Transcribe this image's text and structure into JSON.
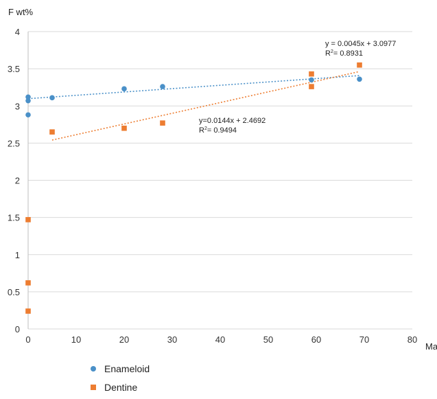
{
  "chart_data": {
    "type": "scatter",
    "title": "",
    "xlabel": "Ma",
    "ylabel": "F wt%",
    "xlim": [
      0,
      80
    ],
    "ylim": [
      0,
      4
    ],
    "xticks": [
      "0",
      "10",
      "20",
      "30",
      "40",
      "50",
      "60",
      "70",
      "80"
    ],
    "yticks": [
      "0",
      "0.5",
      "1",
      "1.5",
      "2",
      "2.5",
      "3",
      "3.5",
      "4"
    ],
    "grid": "horizontal",
    "legend_position": "bottom-left",
    "series": [
      {
        "name": "Enameloid",
        "marker": "circle",
        "color": "#4A90C8",
        "points": [
          [
            0,
            2.88
          ],
          [
            0,
            3.07
          ],
          [
            0,
            3.12
          ],
          [
            5,
            3.11
          ],
          [
            20,
            3.23
          ],
          [
            28,
            3.26
          ],
          [
            59,
            3.35
          ],
          [
            69,
            3.36
          ]
        ],
        "trendline": {
          "x_range": [
            0,
            69
          ],
          "slope": 0.0045,
          "intercept": 3.0977,
          "equation": "y = 0.0045x + 3.0977",
          "r2_label": "R",
          "r2_value": "= 0.8931"
        }
      },
      {
        "name": "Dentine",
        "marker": "square",
        "color": "#ED7D31",
        "points": [
          [
            0,
            0.24
          ],
          [
            0,
            0.62
          ],
          [
            0,
            1.47
          ],
          [
            5,
            2.65
          ],
          [
            20,
            2.7
          ],
          [
            28,
            2.77
          ],
          [
            59,
            3.26
          ],
          [
            59,
            3.43
          ],
          [
            69,
            3.55
          ]
        ],
        "trendline": {
          "x_range": [
            5,
            69
          ],
          "slope": 0.0144,
          "intercept": 2.4692,
          "equation": "y=0.0144x + 2.4692",
          "r2_label": "R",
          "r2_value": "= 0.9494"
        }
      }
    ]
  }
}
